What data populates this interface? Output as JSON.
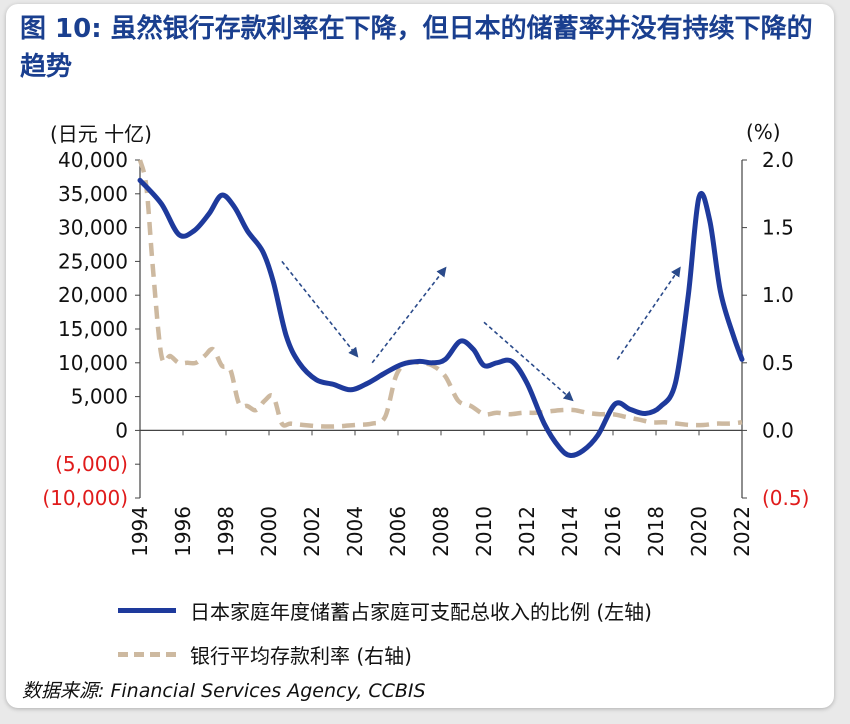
{
  "title": "图 10: 虽然银行存款利率在下降，但日本的储蓄率并没有持续下降的趋势",
  "source": {
    "label": "数据来源",
    "text": ": Financial Services Agency, CCBIS"
  },
  "colors": {
    "title": "#1a3f8f",
    "savings_line": "#1e3a9c",
    "rate_line": "#cdb9a0",
    "negative_ticks": "#e01b1b",
    "arrow": "#2a4a8a"
  },
  "chart_data": {
    "type": "line",
    "left_axis": {
      "unit_label": "(日元 十亿)",
      "ylim": [
        -10000,
        40000
      ],
      "ticks": [
        {
          "value": 40000,
          "label": "40,000",
          "negative": false
        },
        {
          "value": 35000,
          "label": "35,000",
          "negative": false
        },
        {
          "value": 30000,
          "label": "30,000",
          "negative": false
        },
        {
          "value": 25000,
          "label": "25,000",
          "negative": false
        },
        {
          "value": 20000,
          "label": "20,000",
          "negative": false
        },
        {
          "value": 15000,
          "label": "15,000",
          "negative": false
        },
        {
          "value": 10000,
          "label": "10,000",
          "negative": false
        },
        {
          "value": 5000,
          "label": "5,000",
          "negative": false
        },
        {
          "value": 0,
          "label": "0",
          "negative": false
        },
        {
          "value": -5000,
          "label": "(5,000)",
          "negative": true
        },
        {
          "value": -10000,
          "label": "(10,000)",
          "negative": true
        }
      ]
    },
    "right_axis": {
      "unit_label": "(%)",
      "ylim": [
        -0.5,
        2.0
      ],
      "ticks": [
        {
          "value": 2.0,
          "label": "2.0",
          "negative": false
        },
        {
          "value": 1.5,
          "label": "1.5",
          "negative": false
        },
        {
          "value": 1.0,
          "label": "1.0",
          "negative": false
        },
        {
          "value": 0.5,
          "label": "0.5",
          "negative": false
        },
        {
          "value": 0.0,
          "label": "0.0",
          "negative": false
        },
        {
          "value": -0.5,
          "label": "(0.5)",
          "negative": true
        }
      ]
    },
    "x_axis": {
      "xlim": [
        1994,
        2022
      ],
      "tick_labels": [
        "1994",
        "1996",
        "1998",
        "2000",
        "2002",
        "2004",
        "2006",
        "2008",
        "2010",
        "2012",
        "2014",
        "2016",
        "2018",
        "2020",
        "2022"
      ]
    },
    "series": [
      {
        "name": "日本家庭年度储蓄占家庭可支配总收入的比例 (左轴)",
        "axis": "left",
        "style": "solid",
        "points": [
          [
            1994.0,
            37000
          ],
          [
            1995.0,
            33500
          ],
          [
            1995.8,
            29000
          ],
          [
            1996.5,
            29500
          ],
          [
            1997.2,
            32000
          ],
          [
            1997.8,
            34800
          ],
          [
            1998.4,
            33000
          ],
          [
            1999.0,
            29500
          ],
          [
            1999.7,
            26500
          ],
          [
            2000.2,
            22000
          ],
          [
            2000.8,
            14000
          ],
          [
            2001.4,
            10000
          ],
          [
            2002.2,
            7500
          ],
          [
            2003.0,
            6800
          ],
          [
            2003.8,
            6000
          ],
          [
            2004.6,
            7000
          ],
          [
            2005.4,
            8500
          ],
          [
            2006.2,
            9800
          ],
          [
            2007.0,
            10200
          ],
          [
            2007.6,
            10000
          ],
          [
            2008.2,
            10500
          ],
          [
            2008.9,
            13200
          ],
          [
            2009.5,
            12000
          ],
          [
            2010.0,
            9600
          ],
          [
            2010.6,
            10000
          ],
          [
            2011.3,
            10200
          ],
          [
            2012.0,
            7000
          ],
          [
            2012.8,
            1000
          ],
          [
            2013.5,
            -2500
          ],
          [
            2014.0,
            -3700
          ],
          [
            2014.6,
            -3000
          ],
          [
            2015.3,
            -700
          ],
          [
            2016.1,
            3900
          ],
          [
            2016.8,
            3100
          ],
          [
            2017.5,
            2500
          ],
          [
            2018.2,
            3500
          ],
          [
            2018.9,
            7000
          ],
          [
            2019.5,
            20000
          ],
          [
            2020.0,
            34500
          ],
          [
            2020.5,
            31000
          ],
          [
            2021.0,
            20500
          ],
          [
            2021.6,
            14000
          ],
          [
            2022.0,
            10500
          ]
        ]
      },
      {
        "name": "银行平均存款利率 (右轴)",
        "axis": "right",
        "style": "dashed",
        "points": [
          [
            1994.0,
            2.0
          ],
          [
            1994.3,
            1.8
          ],
          [
            1994.6,
            1.2
          ],
          [
            1995.0,
            0.55
          ],
          [
            1995.4,
            0.55
          ],
          [
            1995.8,
            0.5
          ],
          [
            1996.2,
            0.5
          ],
          [
            1996.6,
            0.5
          ],
          [
            1997.0,
            0.55
          ],
          [
            1997.4,
            0.6
          ],
          [
            1997.8,
            0.48
          ],
          [
            1998.2,
            0.45
          ],
          [
            1998.6,
            0.2
          ],
          [
            1999.0,
            0.18
          ],
          [
            1999.4,
            0.15
          ],
          [
            1999.8,
            0.22
          ],
          [
            2000.2,
            0.25
          ],
          [
            2000.6,
            0.05
          ],
          [
            2001.0,
            0.05
          ],
          [
            2001.6,
            0.04
          ],
          [
            2002.4,
            0.03
          ],
          [
            2003.2,
            0.03
          ],
          [
            2004.0,
            0.04
          ],
          [
            2004.8,
            0.05
          ],
          [
            2005.4,
            0.1
          ],
          [
            2005.9,
            0.4
          ],
          [
            2006.4,
            0.5
          ],
          [
            2007.0,
            0.5
          ],
          [
            2007.6,
            0.48
          ],
          [
            2008.2,
            0.4
          ],
          [
            2008.8,
            0.22
          ],
          [
            2009.4,
            0.18
          ],
          [
            2010.0,
            0.12
          ],
          [
            2010.6,
            0.13
          ],
          [
            2011.2,
            0.12
          ],
          [
            2011.8,
            0.13
          ],
          [
            2012.4,
            0.13
          ],
          [
            2013.0,
            0.14
          ],
          [
            2013.6,
            0.15
          ],
          [
            2014.2,
            0.15
          ],
          [
            2014.8,
            0.13
          ],
          [
            2015.4,
            0.12
          ],
          [
            2016.0,
            0.12
          ],
          [
            2016.6,
            0.1
          ],
          [
            2017.2,
            0.08
          ],
          [
            2017.8,
            0.06
          ],
          [
            2018.4,
            0.06
          ],
          [
            2019.0,
            0.05
          ],
          [
            2019.6,
            0.04
          ],
          [
            2020.2,
            0.04
          ],
          [
            2020.8,
            0.05
          ],
          [
            2021.4,
            0.05
          ],
          [
            2022.0,
            0.06
          ]
        ]
      }
    ],
    "trend_arrows": [
      {
        "direction": "down",
        "from": [
          2000.6,
          25000
        ],
        "to": [
          2004.1,
          11000
        ]
      },
      {
        "direction": "up",
        "from": [
          2004.8,
          10000
        ],
        "to": [
          2008.2,
          24000
        ]
      },
      {
        "direction": "down",
        "from": [
          2010.0,
          16000
        ],
        "to": [
          2014.1,
          4500
        ]
      },
      {
        "direction": "up",
        "from": [
          2016.2,
          10500
        ],
        "to": [
          2019.1,
          24000
        ]
      }
    ]
  }
}
